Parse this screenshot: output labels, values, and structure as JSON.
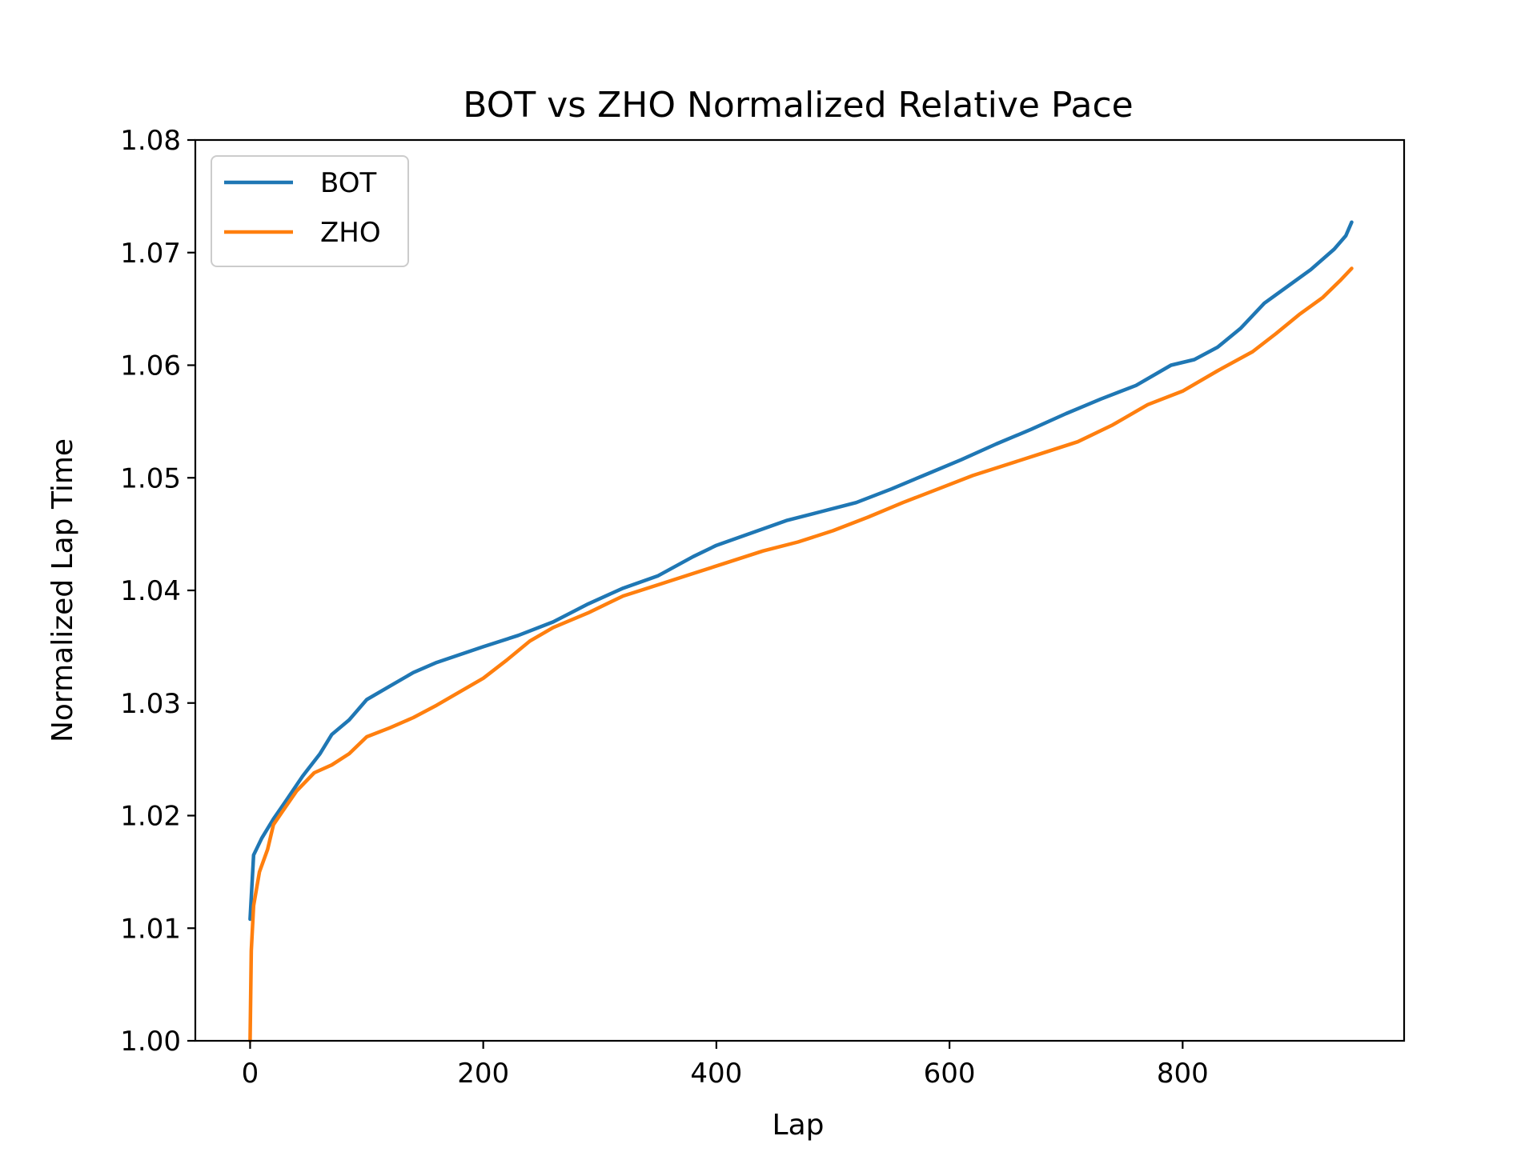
{
  "chart_data": {
    "type": "line",
    "title": "BOT vs ZHO Normalized Relative Pace",
    "xlabel": "Lap",
    "ylabel": "Normalized Lap Time",
    "xlim": [
      -47,
      990
    ],
    "ylim": [
      1.0,
      1.08
    ],
    "xticks": [
      0,
      200,
      400,
      600,
      800
    ],
    "yticks": [
      1.0,
      1.01,
      1.02,
      1.03,
      1.04,
      1.05,
      1.06,
      1.07,
      1.08
    ],
    "grid": false,
    "legend_position": "top-left",
    "series": [
      {
        "name": "BOT",
        "color": "#1f77b4",
        "points": [
          [
            0,
            1.0108
          ],
          [
            3,
            1.0165
          ],
          [
            10,
            1.018
          ],
          [
            20,
            1.0197
          ],
          [
            30,
            1.0212
          ],
          [
            45,
            1.0235
          ],
          [
            60,
            1.0255
          ],
          [
            70,
            1.0272
          ],
          [
            85,
            1.0285
          ],
          [
            100,
            1.0303
          ],
          [
            120,
            1.0315
          ],
          [
            140,
            1.0327
          ],
          [
            160,
            1.0336
          ],
          [
            180,
            1.0343
          ],
          [
            200,
            1.035
          ],
          [
            230,
            1.036
          ],
          [
            260,
            1.0372
          ],
          [
            290,
            1.0388
          ],
          [
            320,
            1.0402
          ],
          [
            350,
            1.0413
          ],
          [
            380,
            1.043
          ],
          [
            400,
            1.044
          ],
          [
            430,
            1.0451
          ],
          [
            460,
            1.0462
          ],
          [
            490,
            1.047
          ],
          [
            520,
            1.0478
          ],
          [
            550,
            1.049
          ],
          [
            580,
            1.0503
          ],
          [
            610,
            1.0516
          ],
          [
            640,
            1.053
          ],
          [
            670,
            1.0543
          ],
          [
            700,
            1.0557
          ],
          [
            730,
            1.057
          ],
          [
            760,
            1.0582
          ],
          [
            790,
            1.06
          ],
          [
            810,
            1.0605
          ],
          [
            830,
            1.0616
          ],
          [
            850,
            1.0633
          ],
          [
            870,
            1.0655
          ],
          [
            890,
            1.067
          ],
          [
            910,
            1.0685
          ],
          [
            930,
            1.0703
          ],
          [
            940,
            1.0715
          ],
          [
            945,
            1.0727
          ]
        ]
      },
      {
        "name": "ZHO",
        "color": "#ff7f0e",
        "points": [
          [
            0,
            1.0
          ],
          [
            1,
            1.008
          ],
          [
            3,
            1.012
          ],
          [
            8,
            1.015
          ],
          [
            15,
            1.017
          ],
          [
            20,
            1.0192
          ],
          [
            30,
            1.0207
          ],
          [
            40,
            1.0222
          ],
          [
            55,
            1.0238
          ],
          [
            70,
            1.0245
          ],
          [
            85,
            1.0255
          ],
          [
            100,
            1.027
          ],
          [
            120,
            1.0278
          ],
          [
            140,
            1.0287
          ],
          [
            160,
            1.0298
          ],
          [
            180,
            1.031
          ],
          [
            200,
            1.0322
          ],
          [
            220,
            1.0338
          ],
          [
            240,
            1.0355
          ],
          [
            260,
            1.0367
          ],
          [
            290,
            1.038
          ],
          [
            320,
            1.0395
          ],
          [
            350,
            1.0405
          ],
          [
            380,
            1.0415
          ],
          [
            410,
            1.0425
          ],
          [
            440,
            1.0435
          ],
          [
            470,
            1.0443
          ],
          [
            500,
            1.0453
          ],
          [
            530,
            1.0465
          ],
          [
            560,
            1.0478
          ],
          [
            590,
            1.049
          ],
          [
            620,
            1.0502
          ],
          [
            650,
            1.0512
          ],
          [
            680,
            1.0522
          ],
          [
            710,
            1.0532
          ],
          [
            740,
            1.0547
          ],
          [
            770,
            1.0565
          ],
          [
            800,
            1.0577
          ],
          [
            830,
            1.0595
          ],
          [
            860,
            1.0612
          ],
          [
            880,
            1.0628
          ],
          [
            900,
            1.0645
          ],
          [
            920,
            1.066
          ],
          [
            935,
            1.0675
          ],
          [
            945,
            1.0686
          ]
        ]
      }
    ]
  }
}
